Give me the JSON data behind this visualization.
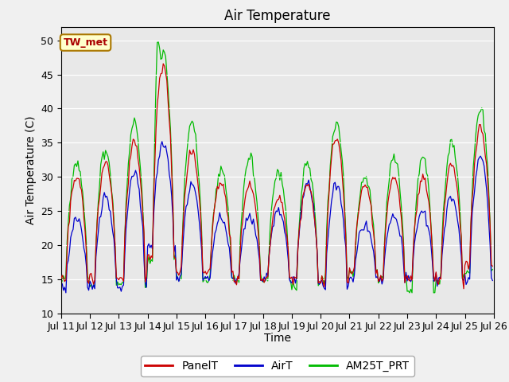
{
  "title": "Air Temperature",
  "ylabel": "Air Temperature (C)",
  "xlabel": "Time",
  "ylim": [
    10,
    52
  ],
  "yticks": [
    10,
    15,
    20,
    25,
    30,
    35,
    40,
    45,
    50
  ],
  "xtick_labels": [
    "Jul 11",
    "Jul 12",
    "Jul 13",
    "Jul 14",
    "Jul 15",
    "Jul 16",
    "Jul 17",
    "Jul 18",
    "Jul 19",
    "Jul 20",
    "Jul 21",
    "Jul 22",
    "Jul 23",
    "Jul 24",
    "Jul 25",
    "Jul 26"
  ],
  "annotation_text": "TW_met",
  "annotation_bg": "#ffffcc",
  "annotation_border": "#aa7700",
  "annotation_text_color": "#aa0000",
  "line_red": "#cc0000",
  "line_blue": "#0000cc",
  "line_green": "#00bb00",
  "legend_labels": [
    "PanelT",
    "AirT",
    "AM25T_PRT"
  ],
  "plot_bg": "#e8e8e8",
  "fig_bg": "#f0f0f0",
  "title_fontsize": 12,
  "label_fontsize": 10,
  "tick_fontsize": 9,
  "legend_fontsize": 10
}
